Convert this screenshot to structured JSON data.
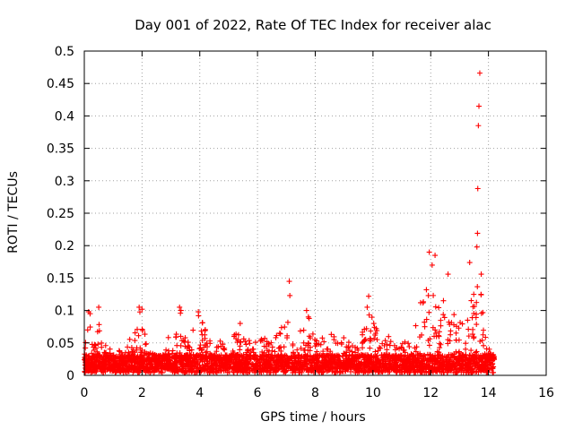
{
  "chart_data": {
    "type": "scatter",
    "title": "Day 001 of 2022, Rate Of TEC Index for receiver alac",
    "xlabel": "GPS time / hours",
    "ylabel": "ROTI / TECUs",
    "xlim": [
      0,
      16
    ],
    "ylim": [
      0,
      0.5
    ],
    "xticks": [
      0,
      2,
      4,
      6,
      8,
      10,
      12,
      14,
      16
    ],
    "xtick_labels": [
      "0",
      "2",
      "4",
      "6",
      "8",
      "10",
      "12",
      "14",
      "16"
    ],
    "yticks": [
      0,
      0.05,
      0.1,
      0.15,
      0.2,
      0.25,
      0.3,
      0.35,
      0.4,
      0.45,
      0.5
    ],
    "ytick_labels": [
      "0",
      "0.05",
      "0.1",
      "0.15",
      "0.2",
      "0.25",
      "0.3",
      "0.35",
      "0.4",
      "0.45",
      "0.5"
    ],
    "grid": true,
    "marker": "+",
    "color": "#ff0000",
    "data_range_hours": [
      0,
      14.2
    ],
    "series": [
      {
        "name": "ROTI",
        "notable_points": [
          {
            "x": 0.15,
            "y": 0.098
          },
          {
            "x": 0.2,
            "y": 0.095
          },
          {
            "x": 0.5,
            "y": 0.105
          },
          {
            "x": 1.9,
            "y": 0.105
          },
          {
            "x": 2.0,
            "y": 0.102
          },
          {
            "x": 3.3,
            "y": 0.105
          },
          {
            "x": 3.35,
            "y": 0.1
          },
          {
            "x": 3.95,
            "y": 0.098
          },
          {
            "x": 5.4,
            "y": 0.08
          },
          {
            "x": 7.1,
            "y": 0.145
          },
          {
            "x": 7.12,
            "y": 0.123
          },
          {
            "x": 7.7,
            "y": 0.1
          },
          {
            "x": 9.85,
            "y": 0.122
          },
          {
            "x": 9.8,
            "y": 0.105
          },
          {
            "x": 11.65,
            "y": 0.112
          },
          {
            "x": 11.85,
            "y": 0.132
          },
          {
            "x": 11.95,
            "y": 0.19
          },
          {
            "x": 12.05,
            "y": 0.17
          },
          {
            "x": 12.15,
            "y": 0.185
          },
          {
            "x": 12.6,
            "y": 0.156
          },
          {
            "x": 13.35,
            "y": 0.174
          },
          {
            "x": 13.6,
            "y": 0.198
          },
          {
            "x": 13.62,
            "y": 0.219
          },
          {
            "x": 13.63,
            "y": 0.288
          },
          {
            "x": 13.65,
            "y": 0.385
          },
          {
            "x": 13.67,
            "y": 0.415
          },
          {
            "x": 13.7,
            "y": 0.466
          },
          {
            "x": 13.75,
            "y": 0.156
          }
        ],
        "envelope": [
          {
            "x": 0.0,
            "y": 0.05
          },
          {
            "x": 0.15,
            "y": 0.1
          },
          {
            "x": 0.3,
            "y": 0.04
          },
          {
            "x": 0.5,
            "y": 0.105
          },
          {
            "x": 0.7,
            "y": 0.05
          },
          {
            "x": 1.0,
            "y": 0.035
          },
          {
            "x": 1.3,
            "y": 0.04
          },
          {
            "x": 1.5,
            "y": 0.06
          },
          {
            "x": 1.8,
            "y": 0.07
          },
          {
            "x": 1.95,
            "y": 0.105
          },
          {
            "x": 2.2,
            "y": 0.04
          },
          {
            "x": 2.6,
            "y": 0.03
          },
          {
            "x": 2.9,
            "y": 0.06
          },
          {
            "x": 3.1,
            "y": 0.05
          },
          {
            "x": 3.3,
            "y": 0.105
          },
          {
            "x": 3.6,
            "y": 0.05
          },
          {
            "x": 3.95,
            "y": 0.098
          },
          {
            "x": 4.3,
            "y": 0.06
          },
          {
            "x": 4.7,
            "y": 0.06
          },
          {
            "x": 5.0,
            "y": 0.045
          },
          {
            "x": 5.4,
            "y": 0.08
          },
          {
            "x": 5.8,
            "y": 0.05
          },
          {
            "x": 6.2,
            "y": 0.06
          },
          {
            "x": 6.6,
            "y": 0.06
          },
          {
            "x": 7.0,
            "y": 0.09
          },
          {
            "x": 7.2,
            "y": 0.06
          },
          {
            "x": 7.7,
            "y": 0.1
          },
          {
            "x": 8.0,
            "y": 0.06
          },
          {
            "x": 8.4,
            "y": 0.06
          },
          {
            "x": 8.8,
            "y": 0.07
          },
          {
            "x": 9.2,
            "y": 0.05
          },
          {
            "x": 9.6,
            "y": 0.065
          },
          {
            "x": 9.85,
            "y": 0.11
          },
          {
            "x": 10.2,
            "y": 0.06
          },
          {
            "x": 10.7,
            "y": 0.06
          },
          {
            "x": 11.2,
            "y": 0.05
          },
          {
            "x": 11.6,
            "y": 0.09
          },
          {
            "x": 11.9,
            "y": 0.14
          },
          {
            "x": 12.2,
            "y": 0.12
          },
          {
            "x": 12.5,
            "y": 0.12
          },
          {
            "x": 12.9,
            "y": 0.09
          },
          {
            "x": 13.2,
            "y": 0.08
          },
          {
            "x": 13.5,
            "y": 0.14
          },
          {
            "x": 13.7,
            "y": 0.15
          },
          {
            "x": 13.9,
            "y": 0.06
          },
          {
            "x": 14.2,
            "y": 0.03
          }
        ]
      }
    ]
  }
}
